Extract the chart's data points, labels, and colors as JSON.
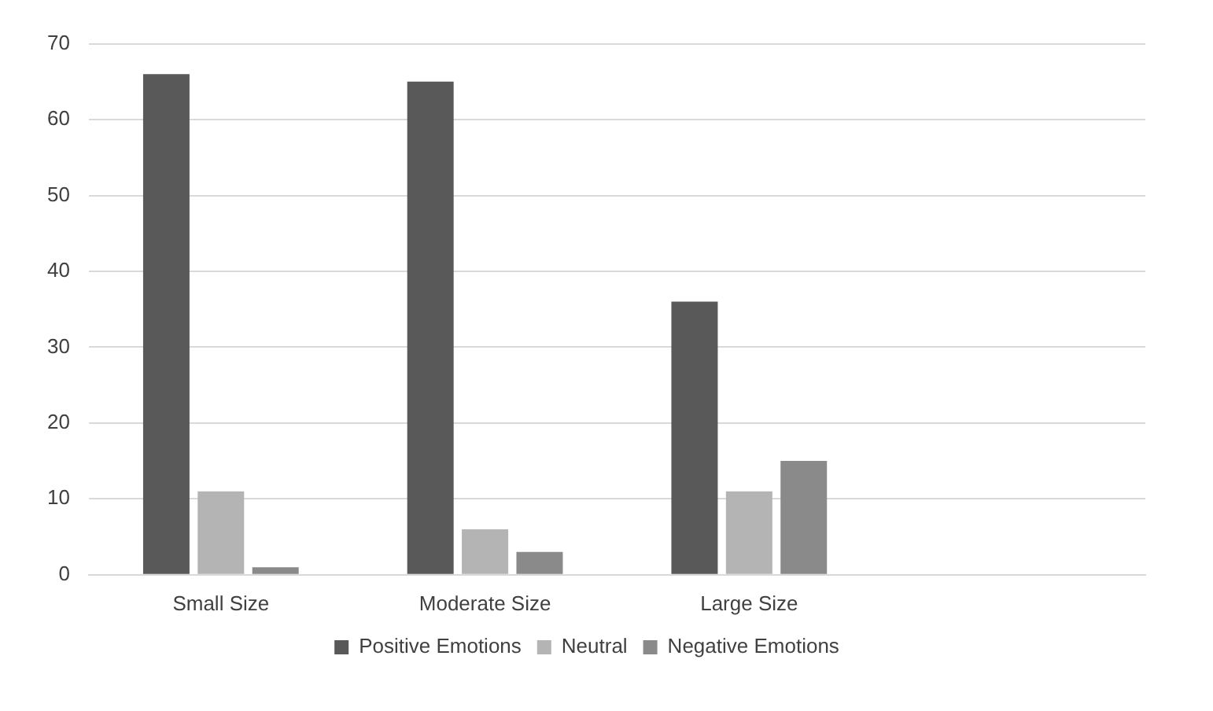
{
  "chart_data": {
    "type": "bar",
    "categories": [
      "Small Size",
      "Moderate Size",
      "Large Size",
      null
    ],
    "series": [
      {
        "name": "Positive Emotions",
        "color": "#595959",
        "values": [
          66,
          65,
          36,
          null
        ]
      },
      {
        "name": "Neutral",
        "color": "#b4b4b4",
        "values": [
          11,
          6,
          11,
          null
        ]
      },
      {
        "name": "Negative Emotions",
        "color": "#8a8a8a",
        "values": [
          1,
          3,
          15,
          null
        ]
      }
    ],
    "ylim": [
      0,
      70
    ],
    "yticks": [
      0,
      10,
      20,
      30,
      40,
      50,
      60,
      70
    ],
    "grid": "y",
    "legend": "bottom"
  }
}
